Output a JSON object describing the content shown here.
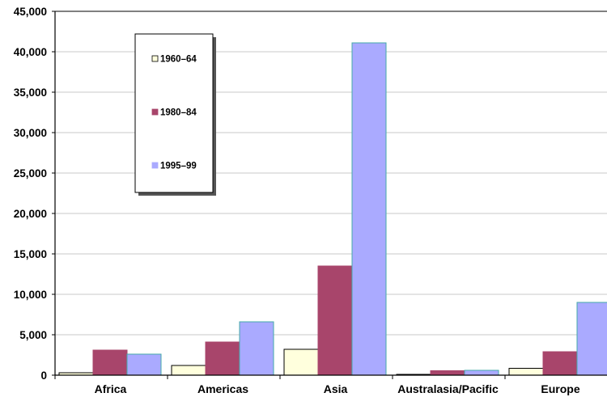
{
  "chart_data": {
    "type": "bar",
    "categories": [
      "Africa",
      "Americas",
      "Asia",
      "Australasia/Pacific",
      "Europe"
    ],
    "series": [
      {
        "name": "1960–64",
        "values": [
          300,
          1200,
          3200,
          100,
          850
        ],
        "color": "#ffffdd",
        "stroke": "#000000"
      },
      {
        "name": "1980–84",
        "values": [
          3100,
          4100,
          13500,
          550,
          2900
        ],
        "color": "#a8456b",
        "stroke": "#a8456b"
      },
      {
        "name": "1995–99",
        "values": [
          2600,
          6600,
          41100,
          600,
          9000
        ],
        "color": "#aaaaff",
        "stroke": "#44aaaa"
      }
    ],
    "ylim": [
      0,
      45000
    ],
    "yticks": [
      "0",
      "5,000",
      "10,000",
      "15,000",
      "20,000",
      "25,000",
      "30,000",
      "35,000",
      "40,000",
      "45,000"
    ],
    "title": "",
    "xlabel": "",
    "ylabel": "",
    "grid": true,
    "legend": "upper-left inside plot"
  }
}
